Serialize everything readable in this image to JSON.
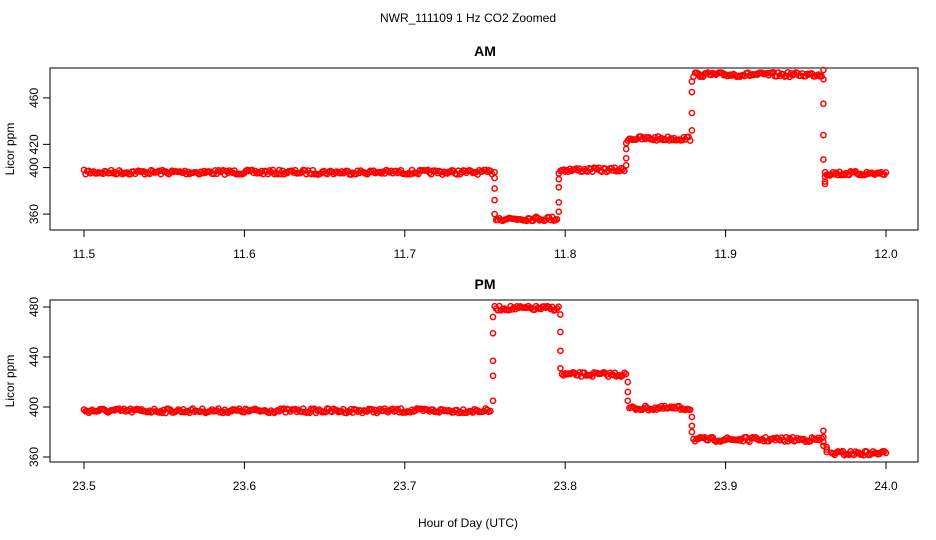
{
  "figure": {
    "suptitle": "NWR_111109  1 Hz CO2 Zoomed",
    "xlabel": "Hour of Day (UTC)"
  },
  "chart_data": [
    {
      "type": "scatter",
      "title": "AM",
      "xlabel": "",
      "ylabel": "Licor ppm",
      "xlim": [
        11.5,
        12.0
      ],
      "ylim": [
        348,
        484
      ],
      "xticks": [
        "11.5",
        "11.6",
        "11.7",
        "11.8",
        "11.9",
        "12.0"
      ],
      "yticks": [
        "360",
        "400",
        "420",
        "460"
      ],
      "color": "#ff0000",
      "marker": "open-circle",
      "plateaus": [
        {
          "x": [
            11.5,
            11.755
          ],
          "y": 396
        },
        {
          "x": [
            11.757,
            11.795
          ],
          "y": 356
        },
        {
          "x": [
            11.797,
            11.837
          ],
          "y": 398
        },
        {
          "x": [
            11.839,
            11.878
          ],
          "y": 425
        },
        {
          "x": [
            11.88,
            11.96
          ],
          "y": 480
        },
        {
          "x": [
            11.963,
            12.0
          ],
          "y": 395
        }
      ],
      "transitions": [
        {
          "x": 11.756,
          "y": [
            396,
            391,
            382,
            372,
            360
          ]
        },
        {
          "x": 11.796,
          "y": [
            362,
            370,
            383,
            390,
            395
          ]
        },
        {
          "x": 11.838,
          "y": [
            402,
            408,
            416,
            421
          ]
        },
        {
          "x": 11.879,
          "y": [
            432,
            447,
            465,
            474
          ]
        },
        {
          "x": 11.961,
          "y": [
            484,
            476,
            455,
            428,
            407
          ]
        },
        {
          "x": 11.962,
          "y": [
            396,
            392,
            388,
            386
          ]
        }
      ]
    },
    {
      "type": "scatter",
      "title": "PM",
      "xlabel": "",
      "ylabel": "Licor ppm",
      "xlim": [
        23.5,
        24.0
      ],
      "ylim": [
        356,
        484
      ],
      "xticks": [
        "23.5",
        "23.6",
        "23.7",
        "23.8",
        "23.9",
        "24.0"
      ],
      "yticks": [
        "360",
        "400",
        "440",
        "480"
      ],
      "color": "#ff0000",
      "marker": "open-circle",
      "plateaus": [
        {
          "x": [
            23.5,
            23.754
          ],
          "y": 397
        },
        {
          "x": [
            23.756,
            23.796
          ],
          "y": 479
        },
        {
          "x": [
            23.798,
            23.838
          ],
          "y": 426
        },
        {
          "x": [
            23.84,
            23.878
          ],
          "y": 399
        },
        {
          "x": [
            23.88,
            23.96
          ],
          "y": 374
        },
        {
          "x": [
            23.966,
            24.0
          ],
          "y": 363
        }
      ],
      "transitions": [
        {
          "x": 23.755,
          "y": [
            405,
            425,
            437,
            459,
            472
          ]
        },
        {
          "x": 23.797,
          "y": [
            474,
            460,
            445,
            431
          ]
        },
        {
          "x": 23.839,
          "y": [
            420,
            412,
            405
          ]
        },
        {
          "x": 23.879,
          "y": [
            392,
            385,
            380
          ]
        },
        {
          "x": 23.961,
          "y": [
            381,
            376,
            372,
            369
          ]
        },
        {
          "x": 23.963,
          "y": [
            368,
            366,
            364
          ]
        }
      ]
    }
  ]
}
